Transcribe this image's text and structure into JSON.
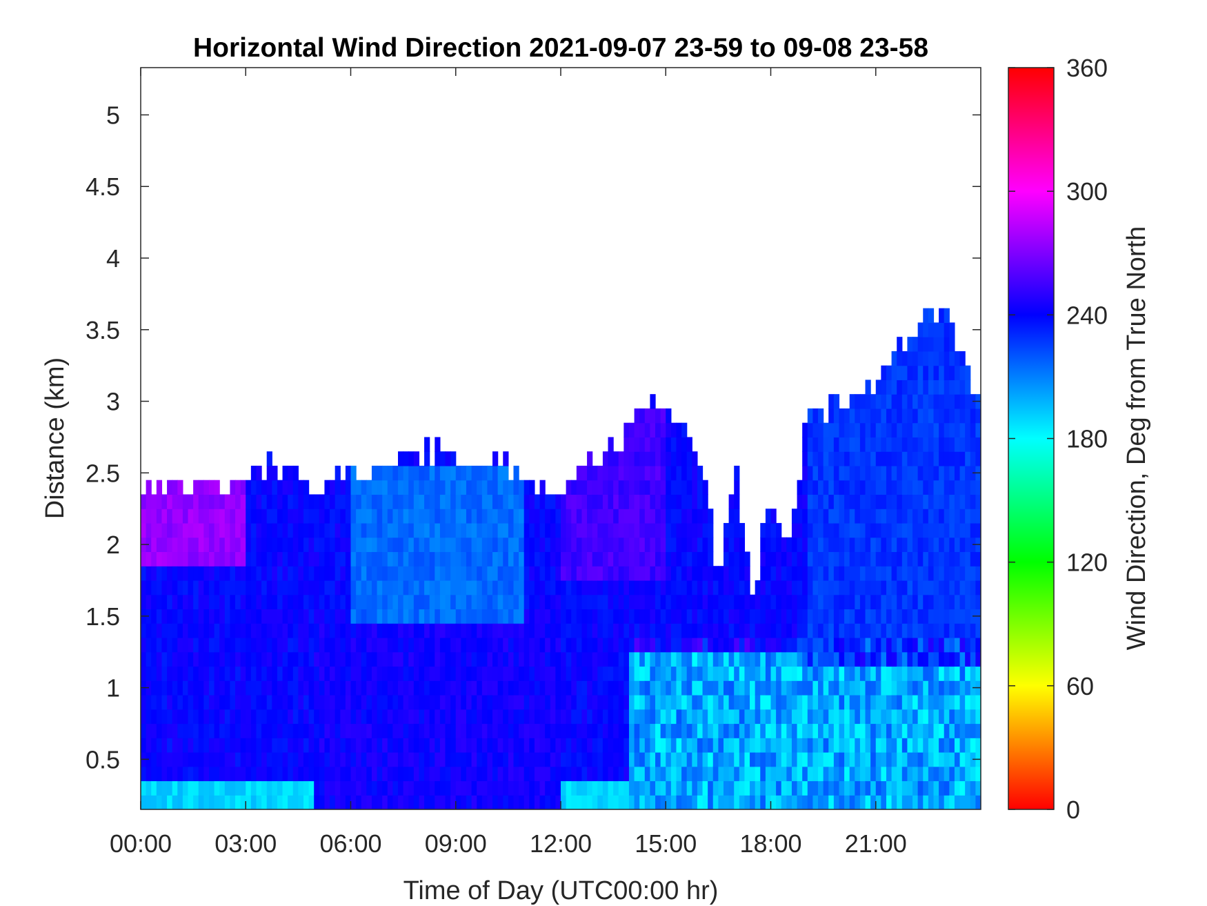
{
  "chart_data": {
    "type": "heatmap",
    "title": "Horizontal Wind Direction 2021-09-07 23-59 to 09-08 23-58",
    "xlabel": "Time of Day (UTC00:00 hr)",
    "ylabel": "Distance (km)",
    "xlim": [
      0,
      24
    ],
    "ylim": [
      0.15,
      5.33
    ],
    "x_ticks": [
      {
        "value": 0,
        "label": "00:00"
      },
      {
        "value": 3,
        "label": "03:00"
      },
      {
        "value": 6,
        "label": "06:00"
      },
      {
        "value": 9,
        "label": "09:00"
      },
      {
        "value": 12,
        "label": "12:00"
      },
      {
        "value": 15,
        "label": "15:00"
      },
      {
        "value": 18,
        "label": "18:00"
      },
      {
        "value": 21,
        "label": "21:00"
      }
    ],
    "y_ticks": [
      {
        "value": 0.5,
        "label": "0.5"
      },
      {
        "value": 1,
        "label": "1"
      },
      {
        "value": 1.5,
        "label": "1.5"
      },
      {
        "value": 2,
        "label": "2"
      },
      {
        "value": 2.5,
        "label": "2.5"
      },
      {
        "value": 3,
        "label": "3"
      },
      {
        "value": 3.5,
        "label": "3.5"
      },
      {
        "value": 4,
        "label": "4"
      },
      {
        "value": 4.5,
        "label": "4.5"
      },
      {
        "value": 5,
        "label": "5"
      }
    ],
    "colorbar": {
      "label": "Wind Direction, Deg from True North",
      "range": [
        0,
        360
      ],
      "ticks": [
        {
          "value": 0,
          "label": "0"
        },
        {
          "value": 60,
          "label": "60"
        },
        {
          "value": 120,
          "label": "120"
        },
        {
          "value": 180,
          "label": "180"
        },
        {
          "value": 240,
          "label": "240"
        },
        {
          "value": 300,
          "label": "300"
        },
        {
          "value": 360,
          "label": "360"
        }
      ],
      "colormap": "hsv"
    },
    "grid": false,
    "data_top_km": [
      [
        0.0,
        2.35
      ],
      [
        0.5,
        2.4
      ],
      [
        1.0,
        2.4
      ],
      [
        1.5,
        2.35
      ],
      [
        2.0,
        2.4
      ],
      [
        2.5,
        2.4
      ],
      [
        3.0,
        2.45
      ],
      [
        3.5,
        2.5
      ],
      [
        4.0,
        2.5
      ],
      [
        4.5,
        2.45
      ],
      [
        5.0,
        2.3
      ],
      [
        5.5,
        2.45
      ],
      [
        6.0,
        2.45
      ],
      [
        6.5,
        2.45
      ],
      [
        7.0,
        2.5
      ],
      [
        7.5,
        2.55
      ],
      [
        8.0,
        2.6
      ],
      [
        8.5,
        2.6
      ],
      [
        9.0,
        2.6
      ],
      [
        9.5,
        2.55
      ],
      [
        10.0,
        2.55
      ],
      [
        10.5,
        2.5
      ],
      [
        11.0,
        2.35
      ],
      [
        11.5,
        2.35
      ],
      [
        12.0,
        2.35
      ],
      [
        12.5,
        2.45
      ],
      [
        13.0,
        2.55
      ],
      [
        13.5,
        2.65
      ],
      [
        14.0,
        2.8
      ],
      [
        14.5,
        2.95
      ],
      [
        15.0,
        2.9
      ],
      [
        15.5,
        2.75
      ],
      [
        16.0,
        2.6
      ],
      [
        16.5,
        1.7
      ],
      [
        17.0,
        2.5
      ],
      [
        17.5,
        1.6
      ],
      [
        18.0,
        2.3
      ],
      [
        18.5,
        1.9
      ],
      [
        19.0,
        2.85
      ],
      [
        19.5,
        2.85
      ],
      [
        20.0,
        2.95
      ],
      [
        20.5,
        2.95
      ],
      [
        21.0,
        3.1
      ],
      [
        21.5,
        3.3
      ],
      [
        22.0,
        3.45
      ],
      [
        22.5,
        3.55
      ],
      [
        23.0,
        3.6
      ],
      [
        23.5,
        3.25
      ],
      [
        24.0,
        2.95
      ]
    ],
    "dominant_direction_deg": [
      {
        "time_range": [
          0,
          3
        ],
        "height_km": [
          1.8,
          2.4
        ],
        "direction_deg": 275
      },
      {
        "time_range": [
          0,
          5
        ],
        "height_km": [
          0.6,
          1.8
        ],
        "direction_deg": 240
      },
      {
        "time_range": [
          0,
          24
        ],
        "height_km": [
          0.15,
          0.35
        ],
        "direction_deg": 190
      },
      {
        "time_range": [
          5,
          12
        ],
        "height_km": [
          0.2,
          1.5
        ],
        "direction_deg": 243
      },
      {
        "time_range": [
          6,
          11
        ],
        "height_km": [
          1.5,
          2.5
        ],
        "direction_deg": 215
      },
      {
        "time_range": [
          12,
          15
        ],
        "height_km": [
          1.8,
          2.9
        ],
        "direction_deg": 255
      },
      {
        "time_range": [
          14,
          24
        ],
        "height_km": [
          0.15,
          1.2
        ],
        "direction_deg": 200
      },
      {
        "time_range": [
          19,
          24
        ],
        "height_km": [
          1.2,
          3.6
        ],
        "direction_deg": 228
      }
    ]
  }
}
